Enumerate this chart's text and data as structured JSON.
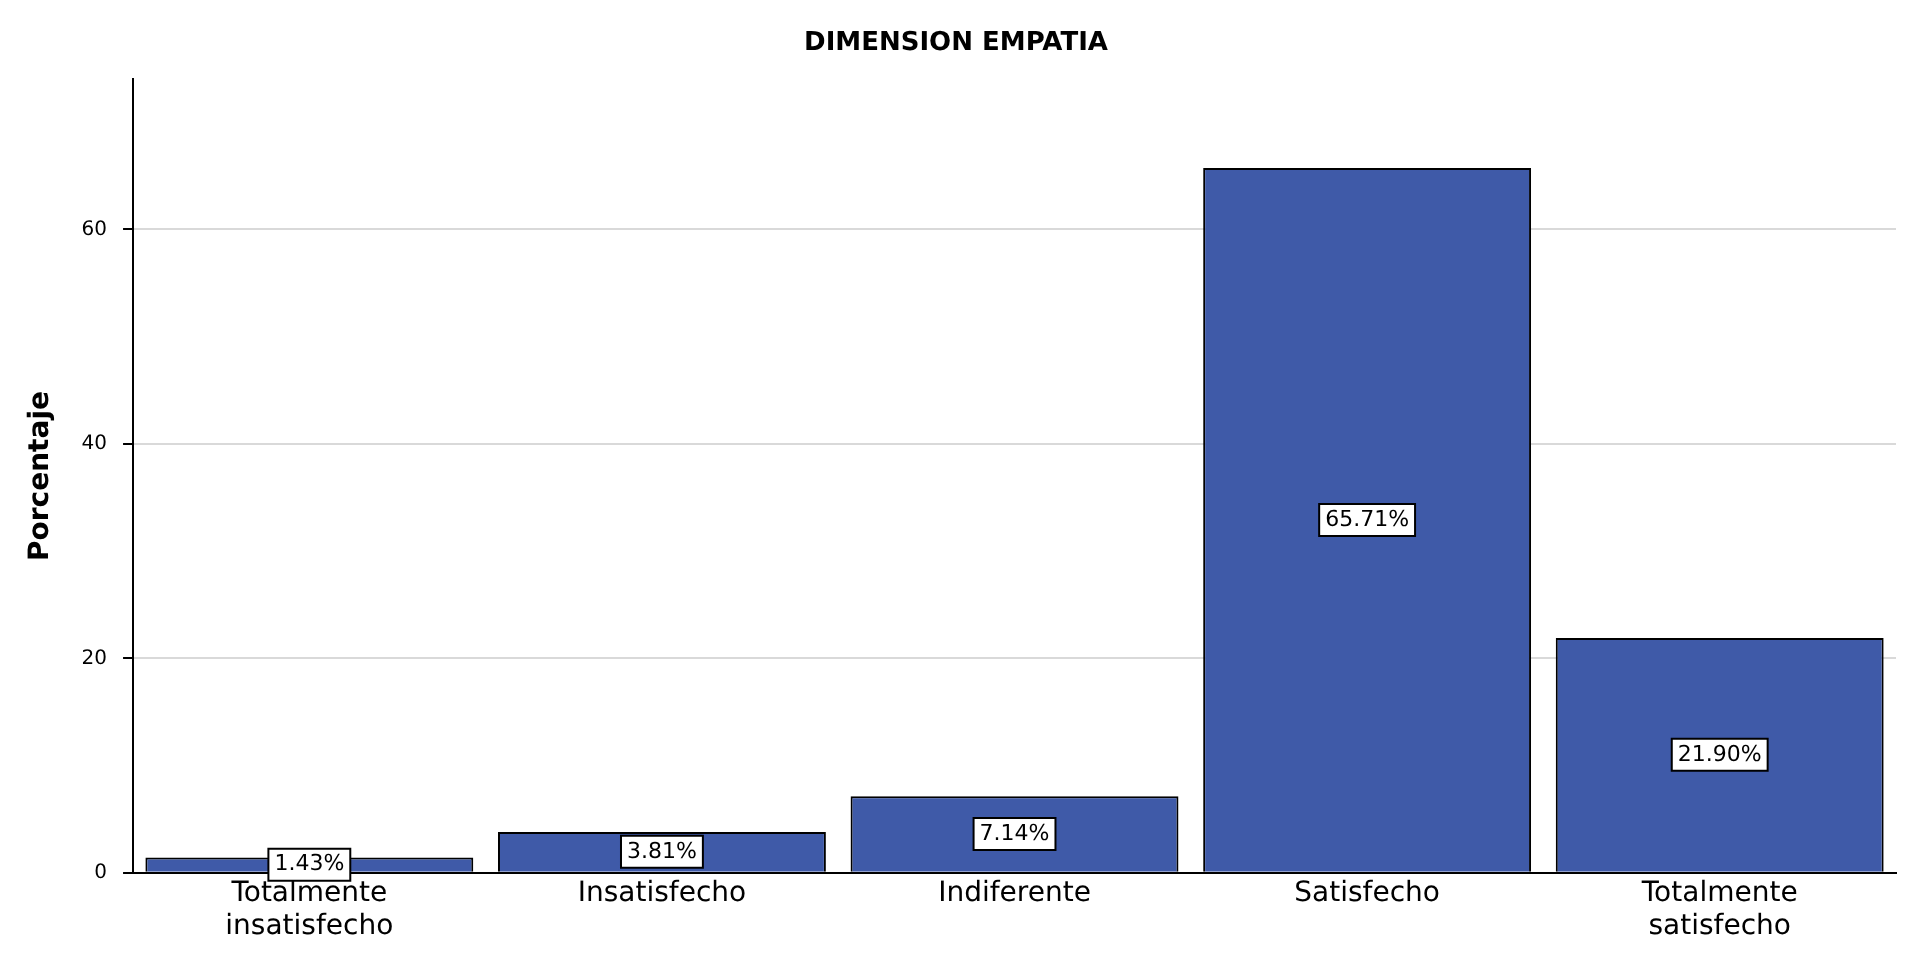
{
  "chart_data": {
    "type": "bar",
    "title": "DIMENSION EMPATIA",
    "ylabel": "Porcentaje",
    "categories": [
      "Totalmente insatisfecho",
      "Insatisfecho",
      "Indiferente",
      "Satisfecho",
      "Totalmente satisfecho"
    ],
    "values": [
      1.43,
      3.81,
      7.14,
      65.71,
      21.9
    ],
    "value_labels": [
      "1.43%",
      "3.81%",
      "7.14%",
      "65.71%",
      "21.90%"
    ],
    "color": "#3f5aa8",
    "ylim": [
      0,
      74
    ],
    "yticks": [
      0,
      20,
      40,
      60
    ],
    "grid": "y",
    "legend": false
  }
}
